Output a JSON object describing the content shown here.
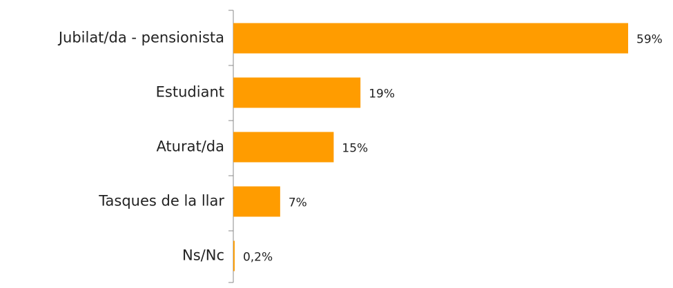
{
  "chart_data": {
    "type": "barh",
    "categories": [
      "Jubilat/da - pensionista",
      "Estudiant",
      "Aturat/da",
      "Tasques de la llar",
      "Ns/Nc"
    ],
    "values": [
      59,
      19,
      15,
      7,
      0.2
    ],
    "value_labels": [
      "59%",
      "19%",
      "15%",
      "7%",
      "0,2%"
    ],
    "color": "#ff9c00"
  }
}
